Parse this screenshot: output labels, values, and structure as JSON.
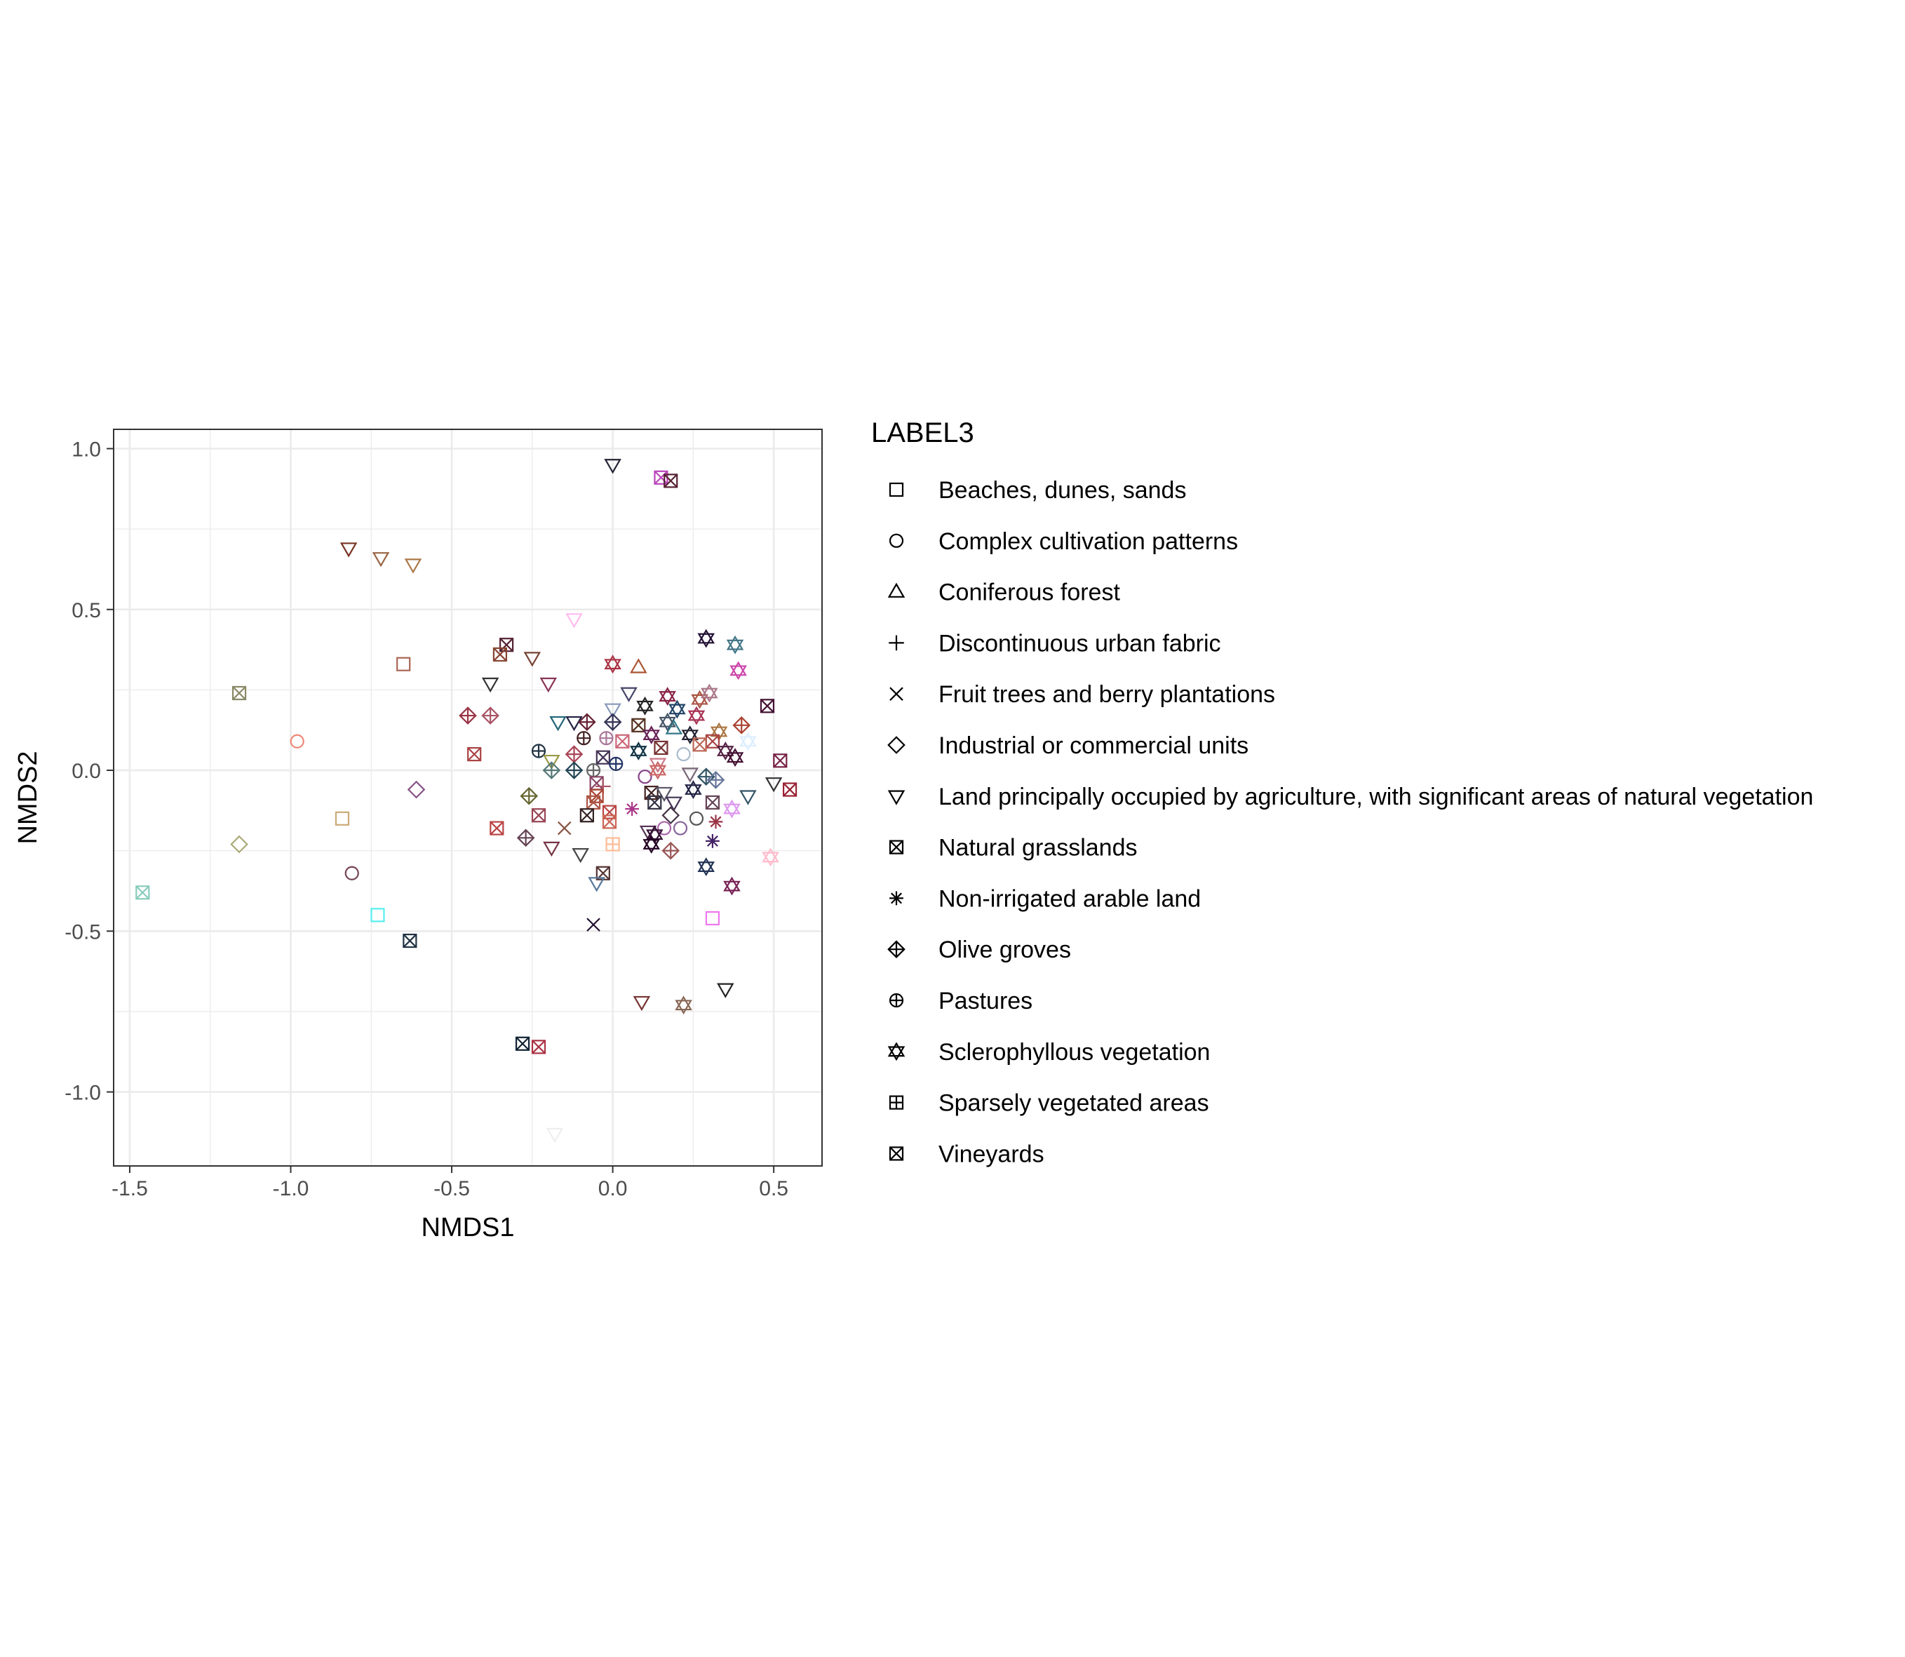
{
  "chart_data": {
    "type": "scatter",
    "xlabel": "NMDS1",
    "ylabel": "NMDS2",
    "xlim": [
      -1.55,
      0.65
    ],
    "ylim": [
      -1.23,
      1.06
    ],
    "x_ticks": [
      -1.5,
      -1.0,
      -0.5,
      0.0,
      0.5
    ],
    "y_ticks": [
      1.0,
      0.5,
      0.0,
      -0.5,
      -1.0
    ],
    "x_tick_labels": [
      "-1.5",
      "-1.0",
      "-0.5",
      "0.0",
      "0.5"
    ],
    "y_tick_labels": [
      "1.0",
      "0.5",
      "0.0",
      "-0.5",
      "-1.0"
    ],
    "grid": true,
    "legend": {
      "title": "LABEL3",
      "placement": "right",
      "entries": [
        {
          "label": "Beaches, dunes, sands",
          "shape": "square"
        },
        {
          "label": "Complex cultivation patterns",
          "shape": "circle"
        },
        {
          "label": "Coniferous forest",
          "shape": "triangle-up"
        },
        {
          "label": "Discontinuous urban fabric",
          "shape": "plus"
        },
        {
          "label": "Fruit trees and berry plantations",
          "shape": "cross"
        },
        {
          "label": "Industrial or commercial units",
          "shape": "diamond"
        },
        {
          "label": "Land principally occupied by agriculture, with significant areas of natural vegetation",
          "shape": "triangle-down"
        },
        {
          "label": "Natural grasslands",
          "shape": "square-cross"
        },
        {
          "label": "Non-irrigated arable land",
          "shape": "asterisk"
        },
        {
          "label": "Olive groves",
          "shape": "diamond-plus"
        },
        {
          "label": "Pastures",
          "shape": "circle-plus"
        },
        {
          "label": "Sclerophyllous vegetation",
          "shape": "star-of-david"
        },
        {
          "label": "Sparsely vegetated areas",
          "shape": "square-plus"
        },
        {
          "label": "Vineyards",
          "shape": "square-x"
        }
      ]
    },
    "points": [
      {
        "x": 0.0,
        "y": 0.95,
        "shape": "triangle-down",
        "color": "#222233"
      },
      {
        "x": 0.15,
        "y": 0.91,
        "shape": "square-cross",
        "color": "#bb44bb"
      },
      {
        "x": 0.18,
        "y": 0.9,
        "shape": "square-cross",
        "color": "#552233"
      },
      {
        "x": -0.82,
        "y": 0.69,
        "shape": "triangle-down",
        "color": "#773322"
      },
      {
        "x": -0.72,
        "y": 0.66,
        "shape": "triangle-down",
        "color": "#996644"
      },
      {
        "x": -0.62,
        "y": 0.64,
        "shape": "triangle-down",
        "color": "#aa7744"
      },
      {
        "x": -0.12,
        "y": 0.47,
        "shape": "triangle-down",
        "color": "#ffbbee"
      },
      {
        "x": 0.29,
        "y": 0.41,
        "shape": "star-of-david",
        "color": "#221133"
      },
      {
        "x": 0.38,
        "y": 0.39,
        "shape": "star-of-david",
        "color": "#447788"
      },
      {
        "x": -0.33,
        "y": 0.39,
        "shape": "square-cross",
        "color": "#552233"
      },
      {
        "x": -0.35,
        "y": 0.36,
        "shape": "square-cross",
        "color": "#884433"
      },
      {
        "x": -0.25,
        "y": 0.35,
        "shape": "triangle-down",
        "color": "#774433"
      },
      {
        "x": -0.65,
        "y": 0.33,
        "shape": "square",
        "color": "#aa6655"
      },
      {
        "x": 0.0,
        "y": 0.33,
        "shape": "star-of-david",
        "color": "#aa3344"
      },
      {
        "x": 0.08,
        "y": 0.32,
        "shape": "triangle-up",
        "color": "#aa5533"
      },
      {
        "x": 0.39,
        "y": 0.31,
        "shape": "star-of-david",
        "color": "#cc44aa"
      },
      {
        "x": -0.38,
        "y": 0.27,
        "shape": "triangle-down",
        "color": "#333333"
      },
      {
        "x": -0.2,
        "y": 0.27,
        "shape": "triangle-down",
        "color": "#883355"
      },
      {
        "x": 0.05,
        "y": 0.24,
        "shape": "triangle-down",
        "color": "#444466"
      },
      {
        "x": 0.17,
        "y": 0.23,
        "shape": "star-of-david",
        "color": "#882244"
      },
      {
        "x": 0.27,
        "y": 0.22,
        "shape": "star-of-david",
        "color": "#aa5544"
      },
      {
        "x": 0.3,
        "y": 0.24,
        "shape": "star-of-david",
        "color": "#aa7788"
      },
      {
        "x": -1.16,
        "y": 0.24,
        "shape": "square-cross",
        "color": "#888866"
      },
      {
        "x": 0.1,
        "y": 0.2,
        "shape": "star-of-david",
        "color": "#222222"
      },
      {
        "x": 0.2,
        "y": 0.19,
        "shape": "star-of-david",
        "color": "#224466"
      },
      {
        "x": 0.48,
        "y": 0.2,
        "shape": "square-cross",
        "color": "#441133"
      },
      {
        "x": 0.0,
        "y": 0.19,
        "shape": "triangle-down",
        "color": "#8899bb"
      },
      {
        "x": 0.26,
        "y": 0.17,
        "shape": "star-of-david",
        "color": "#aa3355"
      },
      {
        "x": -0.45,
        "y": 0.17,
        "shape": "diamond-plus",
        "color": "#993344"
      },
      {
        "x": -0.38,
        "y": 0.17,
        "shape": "diamond-plus",
        "color": "#aa5566"
      },
      {
        "x": -0.17,
        "y": 0.15,
        "shape": "triangle-down",
        "color": "#226677"
      },
      {
        "x": -0.12,
        "y": 0.15,
        "shape": "triangle-down",
        "color": "#222244"
      },
      {
        "x": -0.08,
        "y": 0.15,
        "shape": "diamond-plus",
        "color": "#662233"
      },
      {
        "x": 0.0,
        "y": 0.15,
        "shape": "diamond-plus",
        "color": "#333355"
      },
      {
        "x": 0.08,
        "y": 0.14,
        "shape": "square-cross",
        "color": "#553322"
      },
      {
        "x": 0.17,
        "y": 0.15,
        "shape": "star-of-david",
        "color": "#445566"
      },
      {
        "x": 0.4,
        "y": 0.14,
        "shape": "diamond-plus",
        "color": "#aa4433"
      },
      {
        "x": 0.33,
        "y": 0.12,
        "shape": "star-of-david",
        "color": "#aa7744"
      },
      {
        "x": 0.19,
        "y": 0.13,
        "shape": "triangle-up",
        "color": "#337788"
      },
      {
        "x": 0.12,
        "y": 0.11,
        "shape": "star-of-david",
        "color": "#662255"
      },
      {
        "x": -0.09,
        "y": 0.1,
        "shape": "circle-plus",
        "color": "#442222"
      },
      {
        "x": -0.02,
        "y": 0.1,
        "shape": "circle-plus",
        "color": "#aa7799"
      },
      {
        "x": 0.03,
        "y": 0.09,
        "shape": "square-cross",
        "color": "#cc6677"
      },
      {
        "x": 0.24,
        "y": 0.11,
        "shape": "star-of-david",
        "color": "#222233"
      },
      {
        "x": 0.31,
        "y": 0.09,
        "shape": "square-cross",
        "color": "#aa4444"
      },
      {
        "x": 0.42,
        "y": 0.09,
        "shape": "star-of-david",
        "color": "#ddeeff"
      },
      {
        "x": -0.98,
        "y": 0.09,
        "shape": "circle",
        "color": "#ee8877"
      },
      {
        "x": -0.23,
        "y": 0.06,
        "shape": "circle-plus",
        "color": "#223344"
      },
      {
        "x": -0.12,
        "y": 0.05,
        "shape": "diamond-plus",
        "color": "#aa4455"
      },
      {
        "x": -0.03,
        "y": 0.04,
        "shape": "square-cross",
        "color": "#443355"
      },
      {
        "x": 0.08,
        "y": 0.06,
        "shape": "star-of-david",
        "color": "#113344"
      },
      {
        "x": 0.15,
        "y": 0.07,
        "shape": "square-cross",
        "color": "#773333"
      },
      {
        "x": 0.27,
        "y": 0.08,
        "shape": "square-cross",
        "color": "#bb6655"
      },
      {
        "x": 0.35,
        "y": 0.06,
        "shape": "star-of-david",
        "color": "#552244"
      },
      {
        "x": 0.38,
        "y": 0.04,
        "shape": "star-of-david",
        "color": "#441133"
      },
      {
        "x": -0.43,
        "y": 0.05,
        "shape": "square-cross",
        "color": "#aa4444"
      },
      {
        "x": -0.19,
        "y": 0.03,
        "shape": "triangle-down",
        "color": "#999944"
      },
      {
        "x": 0.01,
        "y": 0.02,
        "shape": "circle-plus",
        "color": "#223366"
      },
      {
        "x": 0.14,
        "y": 0.02,
        "shape": "triangle-down",
        "color": "#cc7788"
      },
      {
        "x": 0.22,
        "y": 0.05,
        "shape": "circle",
        "color": "#aabbcc"
      },
      {
        "x": 0.52,
        "y": 0.03,
        "shape": "square-cross",
        "color": "#772244"
      },
      {
        "x": -0.19,
        "y": 0.0,
        "shape": "diamond-plus",
        "color": "#557777"
      },
      {
        "x": -0.12,
        "y": 0.0,
        "shape": "diamond-plus",
        "color": "#224455"
      },
      {
        "x": -0.06,
        "y": 0.0,
        "shape": "circle-plus",
        "color": "#666666"
      },
      {
        "x": 0.1,
        "y": -0.02,
        "shape": "circle",
        "color": "#884488"
      },
      {
        "x": 0.14,
        "y": 0.0,
        "shape": "star-of-david",
        "color": "#cc6666"
      },
      {
        "x": 0.24,
        "y": -0.01,
        "shape": "triangle-down",
        "color": "#776677"
      },
      {
        "x": 0.29,
        "y": -0.02,
        "shape": "diamond-plus",
        "color": "#335566"
      },
      {
        "x": 0.32,
        "y": -0.03,
        "shape": "diamond-plus",
        "color": "#667799"
      },
      {
        "x": 0.5,
        "y": -0.04,
        "shape": "triangle-down",
        "color": "#333333"
      },
      {
        "x": -0.05,
        "y": -0.04,
        "shape": "square-cross",
        "color": "#884466"
      },
      {
        "x": -0.03,
        "y": -0.05,
        "shape": "plus",
        "color": "#aa5566"
      },
      {
        "x": 0.12,
        "y": -0.07,
        "shape": "square-cross",
        "color": "#442222"
      },
      {
        "x": 0.16,
        "y": -0.07,
        "shape": "triangle-down",
        "color": "#555566"
      },
      {
        "x": 0.25,
        "y": -0.06,
        "shape": "star-of-david",
        "color": "#222244"
      },
      {
        "x": 0.55,
        "y": -0.06,
        "shape": "square-cross",
        "color": "#992233"
      },
      {
        "x": -0.05,
        "y": -0.08,
        "shape": "square-cross",
        "color": "#aa4433"
      },
      {
        "x": 0.19,
        "y": -0.1,
        "shape": "triangle-down",
        "color": "#443355"
      },
      {
        "x": 0.31,
        "y": -0.1,
        "shape": "square-cross",
        "color": "#664455"
      },
      {
        "x": 0.42,
        "y": -0.08,
        "shape": "triangle-down",
        "color": "#335566"
      },
      {
        "x": -0.26,
        "y": -0.08,
        "shape": "diamond-plus",
        "color": "#666633"
      },
      {
        "x": -0.06,
        "y": -0.1,
        "shape": "square-cross",
        "color": "#aa5544"
      },
      {
        "x": 0.13,
        "y": -0.1,
        "shape": "square-cross",
        "color": "#333344"
      },
      {
        "x": 0.37,
        "y": -0.12,
        "shape": "star-of-david",
        "color": "#dd99ee"
      },
      {
        "x": -0.08,
        "y": -0.14,
        "shape": "square-cross",
        "color": "#332222"
      },
      {
        "x": -0.01,
        "y": -0.13,
        "shape": "square-cross",
        "color": "#bb4444"
      },
      {
        "x": -0.23,
        "y": -0.14,
        "shape": "square-cross",
        "color": "#994455"
      },
      {
        "x": 0.06,
        "y": -0.12,
        "shape": "asterisk",
        "color": "#aa3388"
      },
      {
        "x": 0.18,
        "y": -0.14,
        "shape": "diamond",
        "color": "#443344"
      },
      {
        "x": 0.26,
        "y": -0.15,
        "shape": "circle",
        "color": "#555555"
      },
      {
        "x": 0.32,
        "y": -0.16,
        "shape": "asterisk",
        "color": "#993344"
      },
      {
        "x": -0.84,
        "y": -0.15,
        "shape": "square",
        "color": "#ccaa77"
      },
      {
        "x": -0.01,
        "y": -0.16,
        "shape": "square-cross",
        "color": "#cc6655"
      },
      {
        "x": -0.15,
        "y": -0.18,
        "shape": "cross",
        "color": "#885544"
      },
      {
        "x": 0.16,
        "y": -0.18,
        "shape": "circle",
        "color": "#aa66aa"
      },
      {
        "x": 0.21,
        "y": -0.18,
        "shape": "circle",
        "color": "#886699"
      },
      {
        "x": -0.36,
        "y": -0.18,
        "shape": "square-cross",
        "color": "#bb4444"
      },
      {
        "x": 0.11,
        "y": -0.19,
        "shape": "triangle-down",
        "color": "#553355"
      },
      {
        "x": 0.13,
        "y": -0.2,
        "shape": "star-of-david",
        "color": "#331133"
      },
      {
        "x": -0.27,
        "y": -0.21,
        "shape": "diamond-plus",
        "color": "#664455"
      },
      {
        "x": 0.31,
        "y": -0.22,
        "shape": "asterisk",
        "color": "#442266"
      },
      {
        "x": 0.12,
        "y": -0.23,
        "shape": "star-of-david",
        "color": "#220022"
      },
      {
        "x": -0.19,
        "y": -0.24,
        "shape": "triangle-down",
        "color": "#773344"
      },
      {
        "x": 0.0,
        "y": -0.23,
        "shape": "square-plus",
        "color": "#ffbb99"
      },
      {
        "x": 0.18,
        "y": -0.25,
        "shape": "diamond-plus",
        "color": "#995555"
      },
      {
        "x": -1.16,
        "y": -0.23,
        "shape": "diamond",
        "color": "#aaaa77"
      },
      {
        "x": -0.1,
        "y": -0.26,
        "shape": "triangle-down",
        "color": "#444444"
      },
      {
        "x": 0.49,
        "y": -0.27,
        "shape": "star-of-david",
        "color": "#ffbbcc"
      },
      {
        "x": 0.29,
        "y": -0.3,
        "shape": "star-of-david",
        "color": "#223355"
      },
      {
        "x": -0.81,
        "y": -0.32,
        "shape": "circle",
        "color": "#774455"
      },
      {
        "x": -0.03,
        "y": -0.32,
        "shape": "square-cross",
        "color": "#553333"
      },
      {
        "x": -0.05,
        "y": -0.35,
        "shape": "triangle-down",
        "color": "#557799"
      },
      {
        "x": 0.37,
        "y": -0.36,
        "shape": "star-of-david",
        "color": "#772255"
      },
      {
        "x": -1.46,
        "y": -0.38,
        "shape": "square-cross",
        "color": "#88ccbb"
      },
      {
        "x": -0.73,
        "y": -0.45,
        "shape": "square",
        "color": "#55eeee"
      },
      {
        "x": 0.31,
        "y": -0.46,
        "shape": "square",
        "color": "#ee77ee"
      },
      {
        "x": -0.06,
        "y": -0.48,
        "shape": "cross",
        "color": "#221133"
      },
      {
        "x": -0.63,
        "y": -0.53,
        "shape": "square-cross",
        "color": "#223344"
      },
      {
        "x": 0.35,
        "y": -0.68,
        "shape": "triangle-down",
        "color": "#222222"
      },
      {
        "x": 0.09,
        "y": -0.72,
        "shape": "triangle-down",
        "color": "#773333"
      },
      {
        "x": 0.22,
        "y": -0.73,
        "shape": "star-of-david",
        "color": "#886655"
      },
      {
        "x": -0.28,
        "y": -0.85,
        "shape": "square-cross",
        "color": "#112233"
      },
      {
        "x": -0.23,
        "y": -0.86,
        "shape": "square-cross",
        "color": "#aa3344"
      },
      {
        "x": -0.61,
        "y": -0.06,
        "shape": "diamond",
        "color": "#885588"
      },
      {
        "x": -0.18,
        "y": -1.13,
        "shape": "triangle-down",
        "color": "#eeeeee"
      }
    ]
  }
}
